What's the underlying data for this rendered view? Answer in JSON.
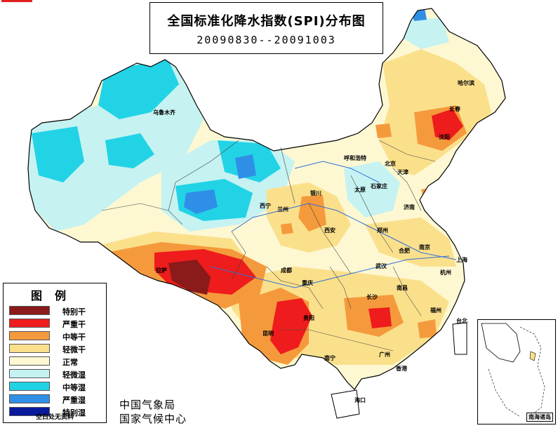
{
  "title": {
    "main": "全国标准化降水指数(SPI)分布图",
    "period": "20090830--20091003"
  },
  "legend": {
    "title": "图例",
    "items": [
      {
        "label": "特别干",
        "color": "#8b1a1a"
      },
      {
        "label": "严重干",
        "color": "#ee1c1c"
      },
      {
        "label": "中等干",
        "color": "#f59a3c"
      },
      {
        "label": "轻微干",
        "color": "#fbe08c"
      },
      {
        "label": "正常",
        "color": "#fdf8d2"
      },
      {
        "label": "轻微湿",
        "color": "#c6f2f2"
      },
      {
        "label": "中等湿",
        "color": "#22d3e6"
      },
      {
        "label": "严重湿",
        "color": "#2f8fe6"
      },
      {
        "label": "特别湿",
        "color": "#0a1a9c"
      }
    ],
    "note": "空白处无资料"
  },
  "agency": {
    "line1": "中国气象局",
    "line2": "国家气候中心"
  },
  "inset": {
    "label": "南海诸岛"
  },
  "cities": {
    "harbin": "哈尔滨",
    "changchun": "长春",
    "shenyang": "沈阳",
    "hohhot": "呼和浩特",
    "beijing": "北京",
    "tianjin": "天津",
    "urumqi": "乌鲁木齐",
    "yinchuan": "银川",
    "taiyuan": "太原",
    "shijiazhuang": "石家庄",
    "jinan": "济南",
    "xining": "西宁",
    "lanzhou": "兰州",
    "xian": "西安",
    "zhengzhou": "郑州",
    "hefei": "合肥",
    "nanjing": "南京",
    "shanghai": "上海",
    "lhasa": "拉萨",
    "chengdu": "成都",
    "wuhan": "武汉",
    "hangzhou": "杭州",
    "chongqing": "重庆",
    "nanchang": "南昌",
    "changsha": "长沙",
    "fuzhou": "福州",
    "guiyang": "贵阳",
    "kunming": "昆明",
    "taibei": "台北",
    "nanning": "南宁",
    "guangzhou": "广州",
    "hongkong": "香港",
    "haikou": "海口"
  }
}
